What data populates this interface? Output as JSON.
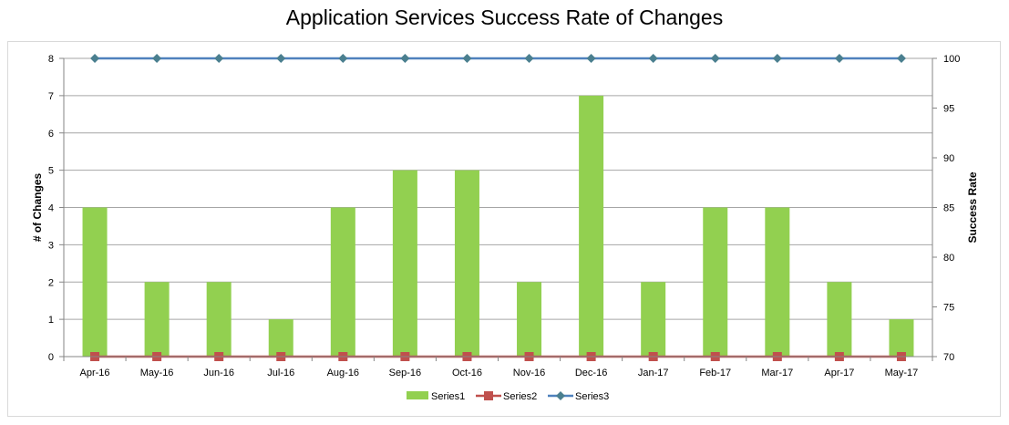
{
  "chart_data": {
    "type": "bar",
    "title": "Application Services Success Rate of Changes",
    "categories": [
      "Apr-16",
      "May-16",
      "Jun-16",
      "Jul-16",
      "Aug-16",
      "Sep-16",
      "Oct-16",
      "Nov-16",
      "Dec-16",
      "Jan-17",
      "Feb-17",
      "Mar-17",
      "Apr-17",
      "May-17"
    ],
    "series": [
      {
        "name": "Series1",
        "type": "bar",
        "axis": "left",
        "color": "#92d050",
        "values": [
          4,
          2,
          2,
          1,
          4,
          5,
          5,
          2,
          7,
          2,
          4,
          4,
          2,
          1
        ]
      },
      {
        "name": "Series2",
        "type": "line",
        "axis": "left",
        "marker": "square",
        "color": "#c0504d",
        "values": [
          0,
          0,
          0,
          0,
          0,
          0,
          0,
          0,
          0,
          0,
          0,
          0,
          0,
          0
        ]
      },
      {
        "name": "Series3",
        "type": "line",
        "axis": "right",
        "marker": "diamond",
        "color": "#4f81bd",
        "values": [
          100,
          100,
          100,
          100,
          100,
          100,
          100,
          100,
          100,
          100,
          100,
          100,
          100,
          100
        ]
      }
    ],
    "ylabel": "# of Changes",
    "ylim": [
      0,
      8
    ],
    "yticks": [
      "0",
      "1",
      "2",
      "3",
      "4",
      "5",
      "6",
      "7",
      "8"
    ],
    "y2label": "Success Rate",
    "y2lim": [
      70,
      100
    ],
    "y2ticks": [
      "70",
      "75",
      "80",
      "85",
      "90",
      "95",
      "100"
    ],
    "grid": true,
    "legend": "bottom"
  }
}
